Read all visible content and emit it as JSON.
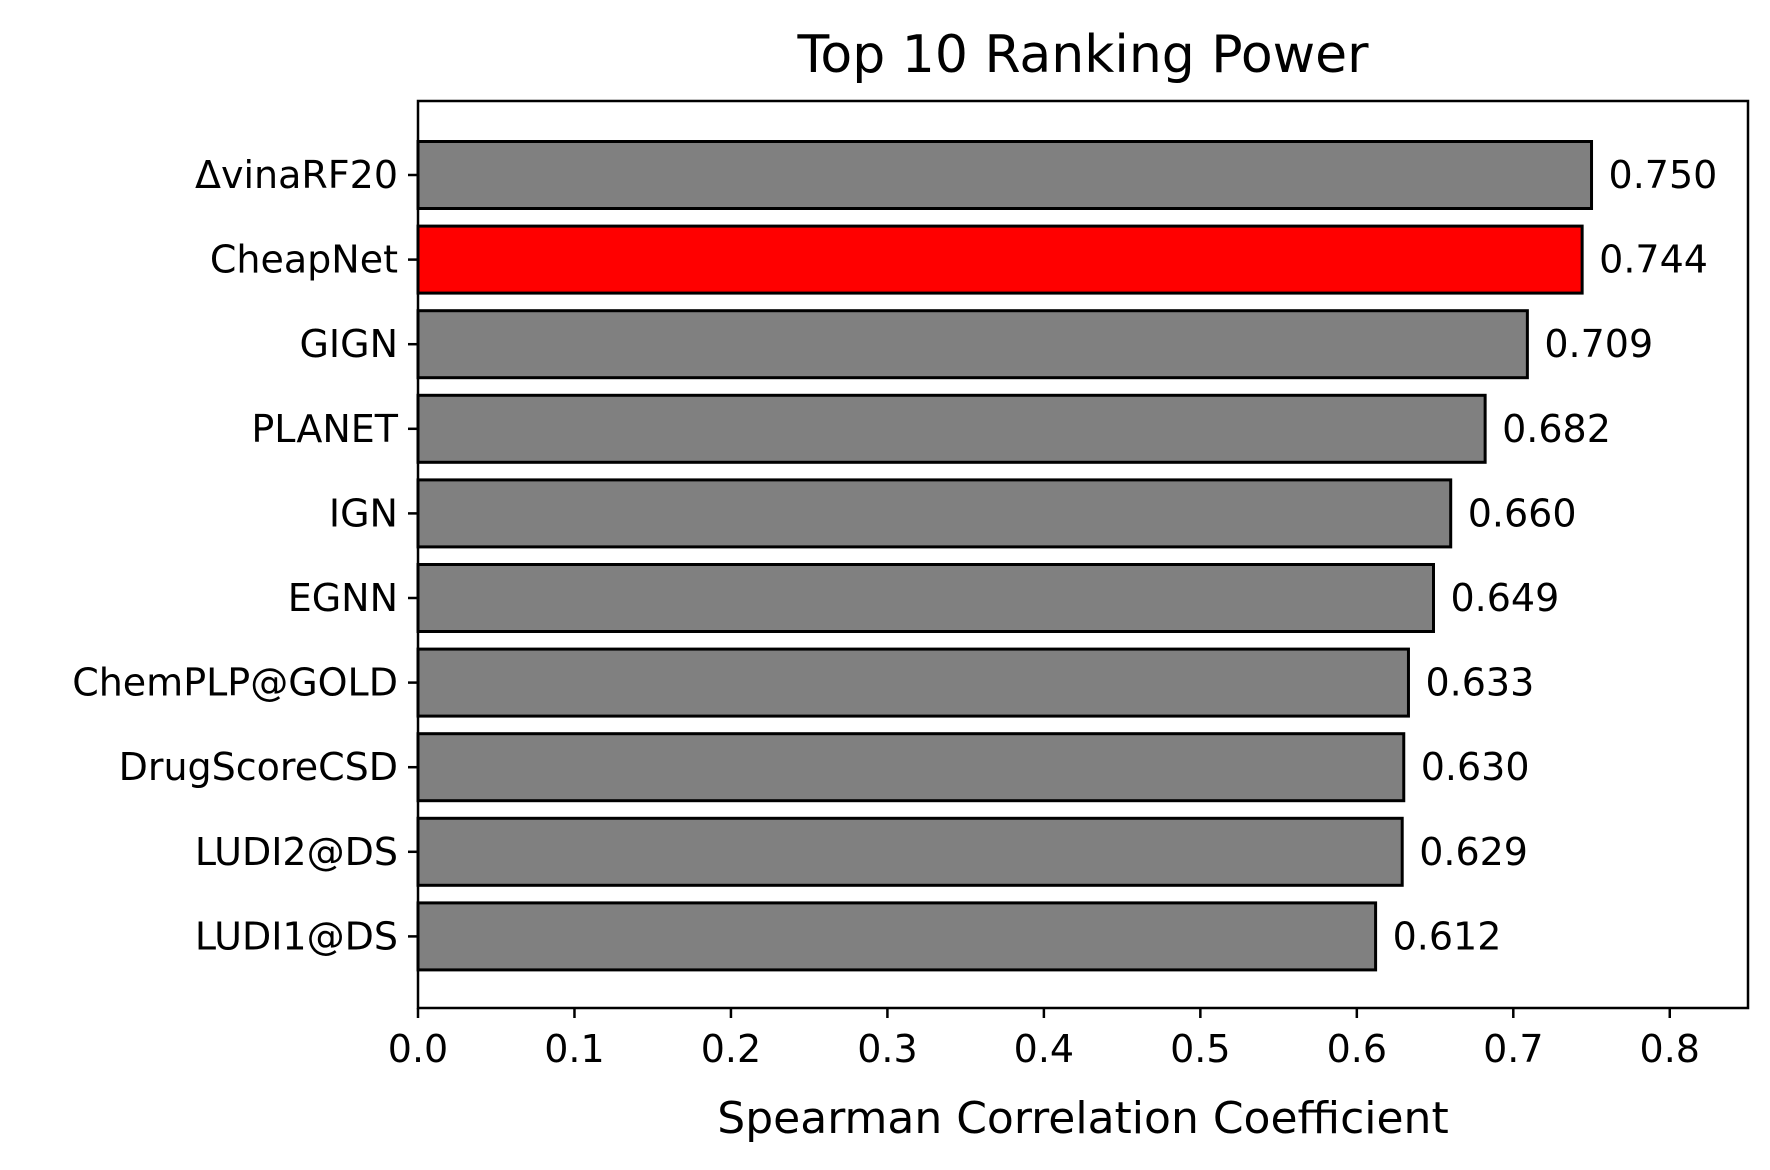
{
  "chart_data": {
    "type": "bar",
    "orientation": "horizontal",
    "title": "Top 10 Ranking Power",
    "xlabel": "Spearman Correlation Coefficient",
    "ylabel": "",
    "xlim": [
      0.0,
      0.85
    ],
    "xticks": [
      "0.0",
      "0.1",
      "0.2",
      "0.3",
      "0.4",
      "0.5",
      "0.6",
      "0.7",
      "0.8"
    ],
    "grid": false,
    "legend": "none",
    "categories": [
      "ΔvinaRF20",
      "CheapNet",
      "GIGN",
      "PLANET",
      "IGN",
      "EGNN",
      "ChemPLP@GOLD",
      "DrugScoreCSD",
      "LUDI2@DS",
      "LUDI1@DS"
    ],
    "values": [
      0.75,
      0.744,
      0.709,
      0.682,
      0.66,
      0.649,
      0.633,
      0.63,
      0.629,
      0.612
    ],
    "value_labels": [
      "0.750",
      "0.744",
      "0.709",
      "0.682",
      "0.660",
      "0.649",
      "0.633",
      "0.630",
      "0.629",
      "0.612"
    ],
    "highlight": "CheapNet",
    "colors": {
      "default_bar": "#808080",
      "highlight_bar": "#ff0000",
      "edge": "#000000"
    }
  }
}
